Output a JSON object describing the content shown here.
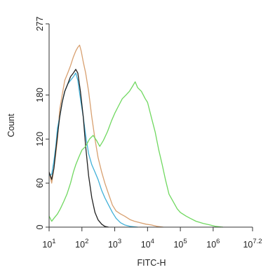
{
  "chart_data": {
    "type": "line",
    "title": "",
    "xlabel": "FITC-H",
    "ylabel": "Count",
    "xscale": "log",
    "xlim": [
      10,
      15848932
    ],
    "ylim": [
      0,
      277
    ],
    "grid": false,
    "legend": "none",
    "y_ticks": [
      {
        "value": 0,
        "label": "0"
      },
      {
        "value": 60,
        "label": "60"
      },
      {
        "value": 120,
        "label": "120"
      },
      {
        "value": 180,
        "label": "180"
      },
      {
        "value": 277,
        "label": "277"
      }
    ],
    "x_ticks": [
      {
        "value": 10,
        "base": "10",
        "exp": "1"
      },
      {
        "value": 100,
        "base": "10",
        "exp": "2"
      },
      {
        "value": 1000,
        "base": "10",
        "exp": "3"
      },
      {
        "value": 10000,
        "base": "10",
        "exp": "4"
      },
      {
        "value": 100000,
        "base": "10",
        "exp": "5"
      },
      {
        "value": 1000000,
        "base": "10",
        "exp": "6"
      },
      {
        "value": 15848932,
        "base": "10",
        "exp": "7.2"
      }
    ],
    "series": [
      {
        "color": "#d8a070",
        "points": [
          [
            10,
            75
          ],
          [
            12,
            60
          ],
          [
            14,
            80
          ],
          [
            16,
            100
          ],
          [
            18,
            120
          ],
          [
            21,
            160
          ],
          [
            25,
            180
          ],
          [
            30,
            200
          ],
          [
            37,
            210
          ],
          [
            45,
            220
          ],
          [
            55,
            232
          ],
          [
            65,
            240
          ],
          [
            75,
            245
          ],
          [
            85,
            248
          ],
          [
            95,
            240
          ],
          [
            110,
            225
          ],
          [
            130,
            210
          ],
          [
            160,
            185
          ],
          [
            200,
            150
          ],
          [
            250,
            120
          ],
          [
            310,
            95
          ],
          [
            400,
            75
          ],
          [
            500,
            60
          ],
          [
            650,
            45
          ],
          [
            850,
            30
          ],
          [
            1100,
            22
          ],
          [
            1500,
            18
          ],
          [
            2000,
            15
          ],
          [
            3000,
            10
          ],
          [
            4000,
            8
          ],
          [
            6000,
            6
          ],
          [
            9000,
            4
          ],
          [
            13000,
            3
          ],
          [
            20000,
            1
          ],
          [
            30000,
            0
          ]
        ]
      },
      {
        "color": "#40b0d8",
        "points": [
          [
            10,
            70
          ],
          [
            12,
            72
          ],
          [
            14,
            90
          ],
          [
            16,
            110
          ],
          [
            18,
            135
          ],
          [
            21,
            150
          ],
          [
            25,
            170
          ],
          [
            30,
            185
          ],
          [
            37,
            195
          ],
          [
            45,
            200
          ],
          [
            55,
            205
          ],
          [
            65,
            210
          ],
          [
            75,
            200
          ],
          [
            90,
            175
          ],
          [
            110,
            150
          ],
          [
            130,
            125
          ],
          [
            160,
            100
          ],
          [
            200,
            85
          ],
          [
            250,
            75
          ],
          [
            310,
            65
          ],
          [
            400,
            50
          ],
          [
            500,
            40
          ],
          [
            650,
            30
          ],
          [
            850,
            20
          ],
          [
            1100,
            12
          ],
          [
            1500,
            6
          ],
          [
            2000,
            3
          ],
          [
            3000,
            1
          ],
          [
            5000,
            0
          ]
        ]
      },
      {
        "color": "#222222",
        "points": [
          [
            10,
            75
          ],
          [
            12,
            65
          ],
          [
            14,
            80
          ],
          [
            16,
            105
          ],
          [
            18,
            125
          ],
          [
            21,
            150
          ],
          [
            25,
            170
          ],
          [
            30,
            185
          ],
          [
            37,
            195
          ],
          [
            45,
            205
          ],
          [
            55,
            210
          ],
          [
            65,
            215
          ],
          [
            75,
            210
          ],
          [
            90,
            185
          ],
          [
            110,
            150
          ],
          [
            130,
            110
          ],
          [
            160,
            70
          ],
          [
            200,
            40
          ],
          [
            250,
            20
          ],
          [
            310,
            10
          ],
          [
            400,
            4
          ],
          [
            500,
            1
          ],
          [
            650,
            0
          ]
        ]
      },
      {
        "color": "#70d860",
        "points": [
          [
            10,
            15
          ],
          [
            12,
            8
          ],
          [
            14,
            12
          ],
          [
            18,
            18
          ],
          [
            22,
            25
          ],
          [
            28,
            35
          ],
          [
            35,
            45
          ],
          [
            45,
            60
          ],
          [
            55,
            75
          ],
          [
            65,
            85
          ],
          [
            80,
            95
          ],
          [
            100,
            105
          ],
          [
            130,
            110
          ],
          [
            170,
            120
          ],
          [
            220,
            125
          ],
          [
            280,
            118
          ],
          [
            350,
            110
          ],
          [
            450,
            118
          ],
          [
            600,
            130
          ],
          [
            800,
            145
          ],
          [
            1000,
            155
          ],
          [
            1300,
            165
          ],
          [
            1700,
            175
          ],
          [
            2200,
            180
          ],
          [
            2800,
            185
          ],
          [
            3500,
            192
          ],
          [
            4200,
            198
          ],
          [
            5000,
            190
          ],
          [
            6500,
            185
          ],
          [
            8500,
            175
          ],
          [
            10000,
            170
          ],
          [
            13000,
            150
          ],
          [
            17000,
            130
          ],
          [
            22000,
            105
          ],
          [
            28000,
            85
          ],
          [
            35000,
            65
          ],
          [
            45000,
            45
          ],
          [
            60000,
            35
          ],
          [
            80000,
            25
          ],
          [
            100000,
            20
          ],
          [
            150000,
            15
          ],
          [
            200000,
            12
          ],
          [
            300000,
            8
          ],
          [
            500000,
            5
          ],
          [
            800000,
            3
          ],
          [
            1200000,
            1
          ],
          [
            2000000,
            0
          ]
        ]
      }
    ]
  }
}
